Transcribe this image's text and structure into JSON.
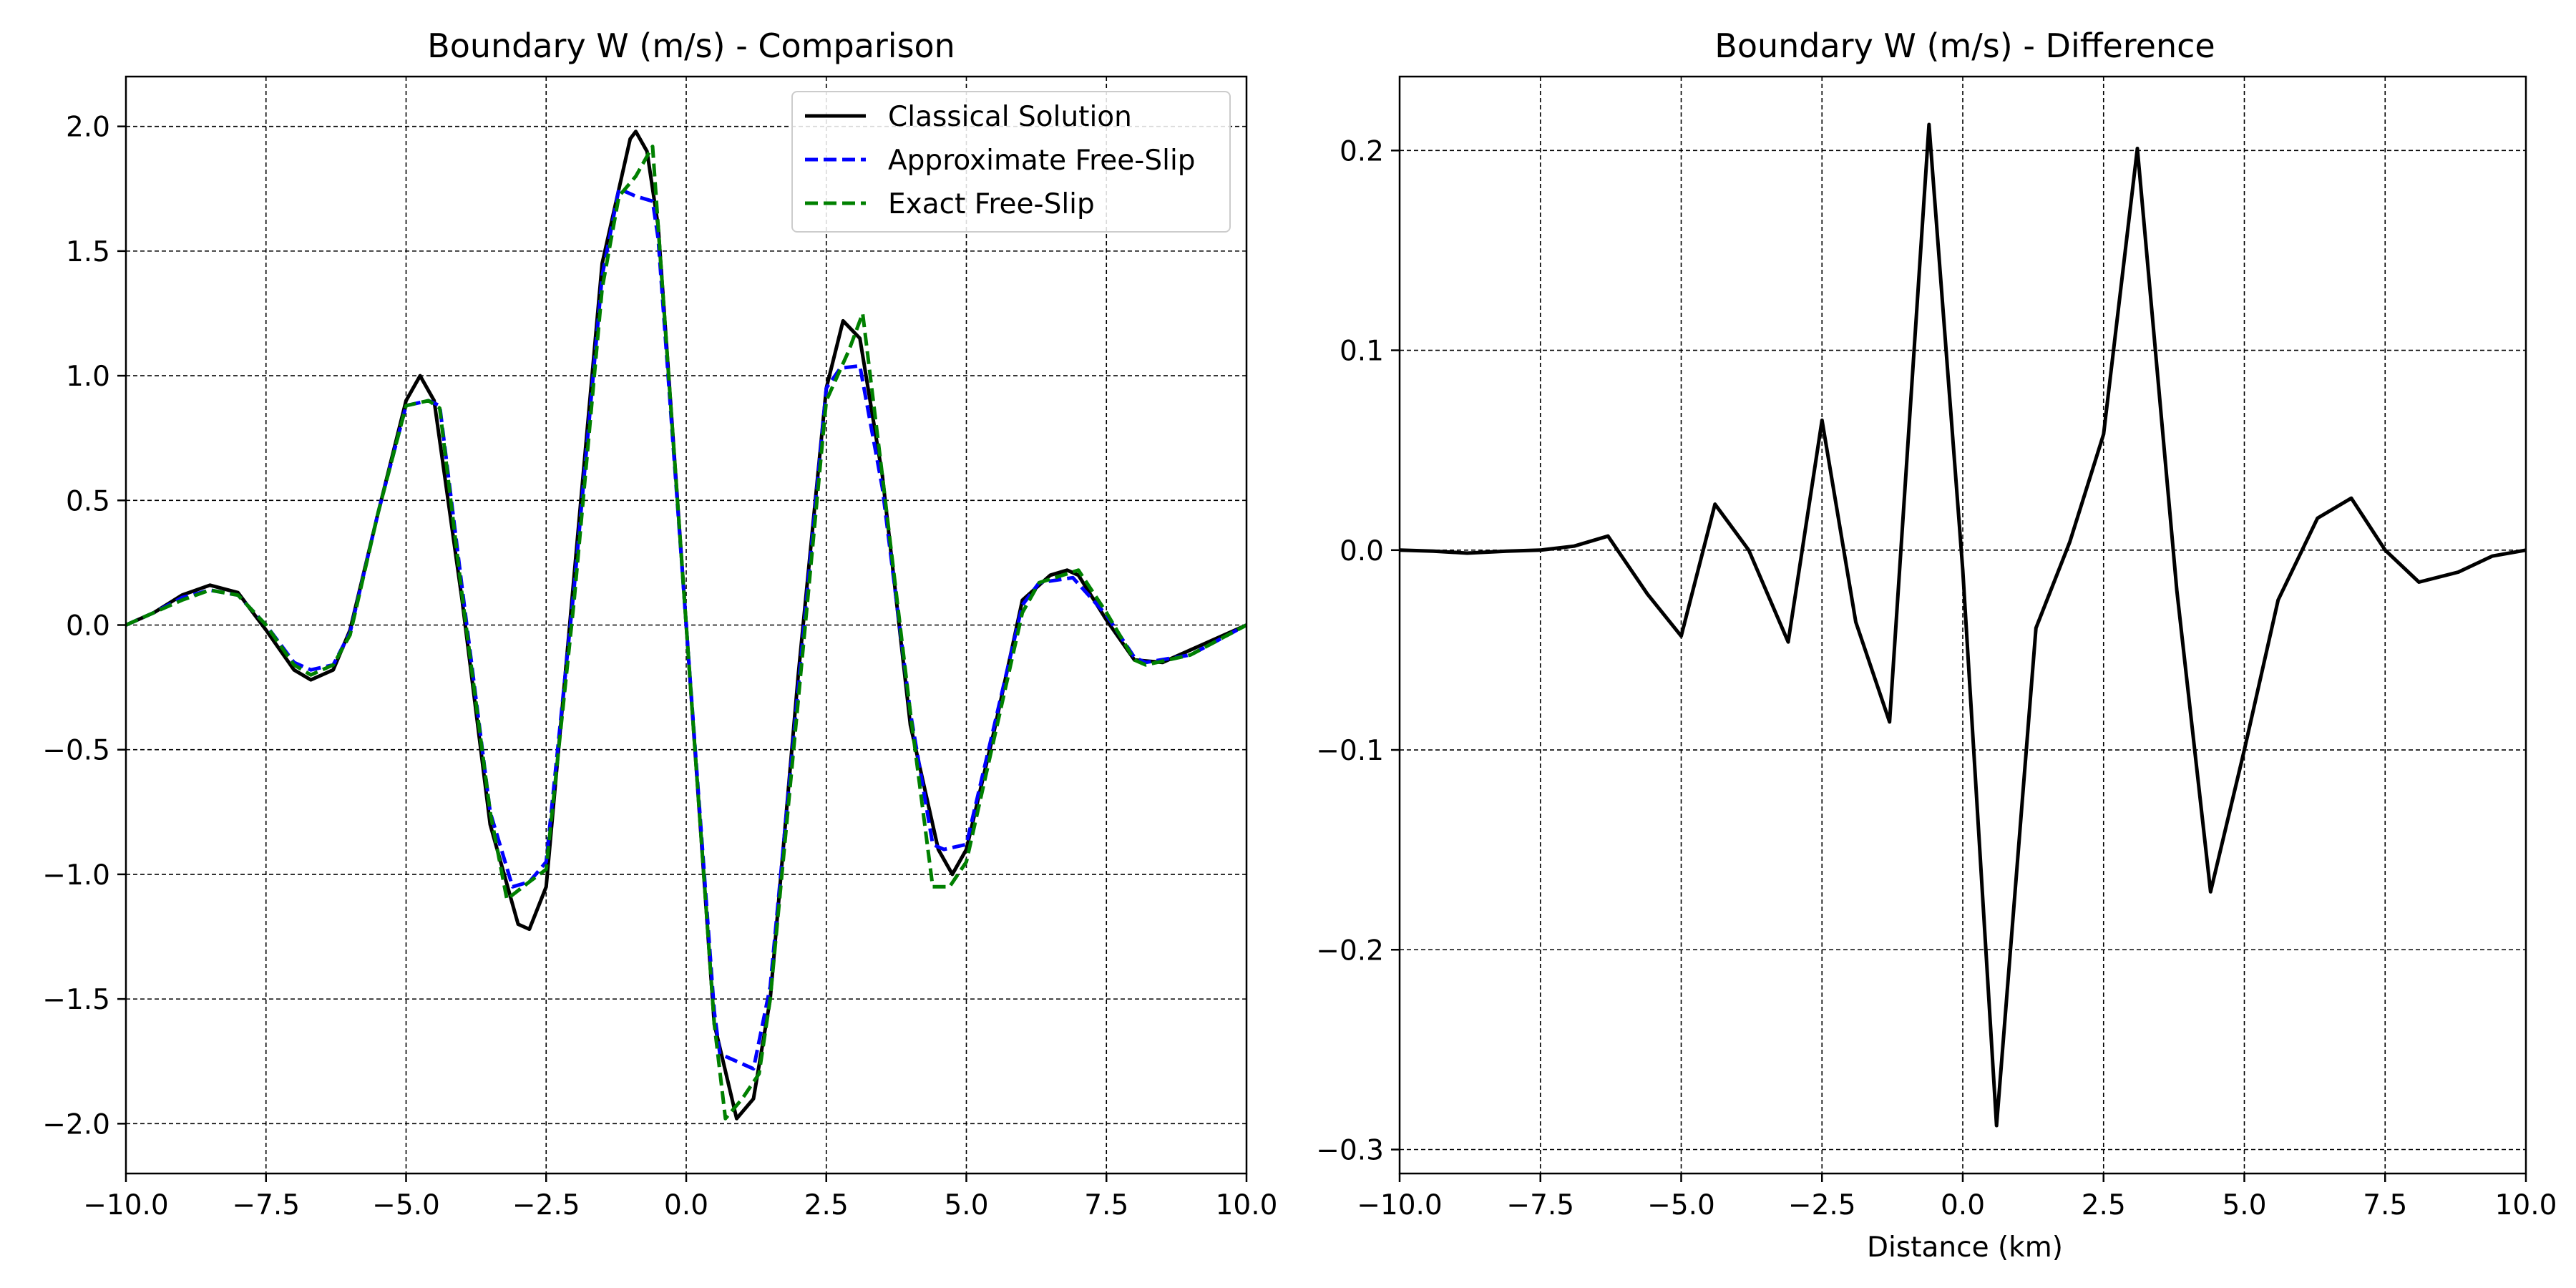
{
  "chart_data": [
    {
      "type": "line",
      "title": "Boundary W (m/s) - Comparison",
      "xlabel": "",
      "ylabel": "",
      "xlim": [
        -10,
        10
      ],
      "ylim": [
        -2.2,
        2.2
      ],
      "xticks": [
        -10,
        -7.5,
        -5,
        -2.5,
        0,
        2.5,
        5,
        7.5,
        10
      ],
      "xtick_labels": [
        "−10.0",
        "−7.5",
        "−5.0",
        "−2.5",
        "0.0",
        "2.5",
        "5.0",
        "7.5",
        "10.0"
      ],
      "yticks": [
        -2,
        -1.5,
        -1,
        -0.5,
        0,
        0.5,
        1,
        1.5,
        2
      ],
      "ytick_labels": [
        "−2.0",
        "−1.5",
        "−1.0",
        "−0.5",
        "0.0",
        "0.5",
        "1.0",
        "1.5",
        "2.0"
      ],
      "grid": true,
      "legend_position": "upper right",
      "series": [
        {
          "name": "Classical Solution",
          "color": "#000000",
          "dash": "solid",
          "x": [
            -10,
            -9.5,
            -9,
            -8.5,
            -8,
            -7.5,
            -7,
            -6.7,
            -6.3,
            -6,
            -5.5,
            -5,
            -4.75,
            -4.5,
            -4,
            -3.5,
            -3,
            -2.8,
            -2.5,
            -2,
            -1.5,
            -1,
            -0.9,
            -0.7,
            -0.5,
            0,
            0.5,
            0.9,
            1.2,
            1.5,
            2,
            2.5,
            2.8,
            3.1,
            3.5,
            4,
            4.5,
            4.75,
            5,
            5.5,
            6,
            6.5,
            6.8,
            7,
            7.5,
            8,
            8.5,
            9,
            9.5,
            10
          ],
          "y": [
            0,
            0.05,
            0.12,
            0.16,
            0.13,
            -0.02,
            -0.18,
            -0.22,
            -0.18,
            -0.02,
            0.45,
            0.9,
            1.0,
            0.9,
            0.1,
            -0.8,
            -1.2,
            -1.22,
            -1.05,
            0.2,
            1.45,
            1.95,
            1.98,
            1.9,
            1.6,
            0,
            -1.6,
            -1.98,
            -1.9,
            -1.5,
            -0.2,
            0.95,
            1.22,
            1.15,
            0.6,
            -0.4,
            -0.9,
            -1.0,
            -0.9,
            -0.42,
            0.1,
            0.2,
            0.22,
            0.2,
            0.02,
            -0.14,
            -0.15,
            -0.1,
            -0.05,
            0
          ]
        },
        {
          "name": "Approximate Free-Slip",
          "color": "#0000ff",
          "dash": "dashed",
          "x": [
            -10,
            -9.5,
            -9,
            -8.5,
            -8,
            -7.5,
            -7,
            -6.7,
            -6.3,
            -6,
            -5.5,
            -5,
            -4.6,
            -4.4,
            -4,
            -3.5,
            -3.1,
            -2.8,
            -2.5,
            -2,
            -1.5,
            -1.2,
            -0.9,
            -0.6,
            -0.5,
            0,
            0.5,
            0.6,
            1.2,
            1.5,
            2,
            2.5,
            2.75,
            3.1,
            3.5,
            4,
            4.4,
            4.6,
            5,
            5.5,
            6,
            6.3,
            6.9,
            7.5,
            8,
            8.2,
            9,
            9.5,
            10
          ],
          "y": [
            0,
            0.05,
            0.11,
            0.14,
            0.12,
            0,
            -0.15,
            -0.18,
            -0.16,
            -0.03,
            0.45,
            0.88,
            0.9,
            0.88,
            0.15,
            -0.75,
            -1.05,
            -1.03,
            -0.95,
            0.15,
            1.4,
            1.75,
            1.72,
            1.7,
            1.55,
            0,
            -1.55,
            -1.72,
            -1.78,
            -1.45,
            -0.25,
            0.95,
            1.03,
            1.04,
            0.55,
            -0.35,
            -0.88,
            -0.9,
            -0.88,
            -0.4,
            0.08,
            0.17,
            0.19,
            0.04,
            -0.13,
            -0.15,
            -0.12,
            -0.06,
            0
          ]
        },
        {
          "name": "Exact Free-Slip",
          "color": "#008000",
          "dash": "dashed",
          "x": [
            -10,
            -9.5,
            -9,
            -8.5,
            -8,
            -7.5,
            -7,
            -6.7,
            -6.3,
            -6,
            -5.5,
            -5,
            -4.6,
            -4.4,
            -4,
            -3.5,
            -3.2,
            -2.8,
            -2.5,
            -2,
            -1.5,
            -1.2,
            -0.9,
            -0.6,
            -0.5,
            0,
            0.5,
            0.7,
            1,
            1.3,
            1.5,
            2,
            2.5,
            2.9,
            3.15,
            3.5,
            4,
            4.4,
            4.7,
            5,
            5.5,
            6,
            6.3,
            7,
            7.5,
            8,
            8.2,
            9,
            9.5,
            10
          ],
          "y": [
            0,
            0.05,
            0.1,
            0.14,
            0.12,
            0,
            -0.16,
            -0.2,
            -0.16,
            -0.04,
            0.45,
            0.88,
            0.9,
            0.87,
            0.12,
            -0.75,
            -1.1,
            -1.03,
            -0.98,
            0.1,
            1.35,
            1.72,
            1.8,
            1.92,
            1.6,
            0,
            -1.6,
            -1.98,
            -1.9,
            -1.8,
            -1.5,
            -0.3,
            0.9,
            1.1,
            1.25,
            0.6,
            -0.35,
            -1.05,
            -1.05,
            -0.95,
            -0.45,
            0.05,
            0.17,
            0.22,
            0.05,
            -0.14,
            -0.16,
            -0.12,
            -0.06,
            0
          ]
        }
      ]
    },
    {
      "type": "line",
      "title": "Boundary W (m/s) - Difference",
      "xlabel": "Distance (km)",
      "ylabel": "",
      "xlim": [
        -10,
        10
      ],
      "ylim": [
        -0.312,
        0.237
      ],
      "xticks": [
        -10,
        -7.5,
        -5,
        -2.5,
        0,
        2.5,
        5,
        7.5,
        10
      ],
      "xtick_labels": [
        "−10.0",
        "−7.5",
        "−5.0",
        "−2.5",
        "0.0",
        "2.5",
        "5.0",
        "7.5",
        "10.0"
      ],
      "yticks": [
        -0.3,
        -0.2,
        -0.1,
        0,
        0.1,
        0.2
      ],
      "ytick_labels": [
        "−0.3",
        "−0.2",
        "−0.1",
        "0.0",
        "0.1",
        "0.2"
      ],
      "grid": true,
      "series": [
        {
          "color": "#000000",
          "dash": "solid",
          "x": [
            -10,
            -9.4,
            -8.8,
            -8.1,
            -7.5,
            -6.9,
            -6.3,
            -5.6,
            -5,
            -4.4,
            -3.8,
            -3.1,
            -2.5,
            -1.9,
            -1.3,
            -0.6,
            0,
            0.6,
            1.3,
            1.9,
            2.5,
            3.1,
            3.8,
            4.4,
            5,
            5.6,
            6.3,
            6.9,
            7.5,
            8.1,
            8.8,
            9.4,
            10
          ],
          "y": [
            0,
            -0.0005,
            -0.0015,
            -0.0005,
            0,
            0.002,
            0.007,
            -0.022,
            -0.043,
            0.023,
            0.0,
            -0.046,
            0.065,
            -0.036,
            -0.086,
            0.213,
            -0.01,
            -0.288,
            -0.039,
            0.004,
            0.058,
            0.201,
            -0.02,
            -0.171,
            -0.1,
            -0.025,
            0.016,
            0.026,
            0.0,
            -0.016,
            -0.011,
            -0.003,
            0
          ]
        }
      ]
    }
  ],
  "colors": {
    "grid": "#000000",
    "legend_border": "#cccccc"
  }
}
